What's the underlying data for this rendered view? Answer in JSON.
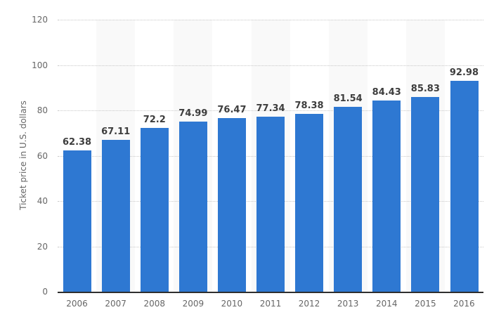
{
  "chart_data": {
    "type": "bar",
    "title": "",
    "xlabel": "",
    "ylabel": "Ticket price in U.S. dollars",
    "categories": [
      "2006",
      "2007",
      "2008",
      "2009",
      "2010",
      "2011",
      "2012",
      "2013",
      "2014",
      "2015",
      "2016"
    ],
    "values": [
      62.38,
      67.11,
      72.2,
      74.99,
      76.47,
      77.34,
      78.38,
      81.54,
      84.43,
      85.83,
      92.98
    ],
    "value_labels": [
      "62.38",
      "67.11",
      "72.2",
      "74.99",
      "76.47",
      "77.34",
      "78.38",
      "81.54",
      "84.43",
      "85.83",
      "92.98"
    ],
    "ylim": [
      0,
      120
    ],
    "yticks": [
      0,
      20,
      40,
      60,
      80,
      100,
      120
    ],
    "grid": "horizontal-dotted",
    "legend": "none",
    "plot_bands": "alternating-columns",
    "colors": {
      "background": "#ffffff",
      "bar": "#2e78d2",
      "band": "#f9f9f9",
      "grid": "#c8c8c8",
      "axis_line": "#2f2f2f",
      "tick_label": "#666666",
      "value_label": "#3d3d3d"
    }
  }
}
